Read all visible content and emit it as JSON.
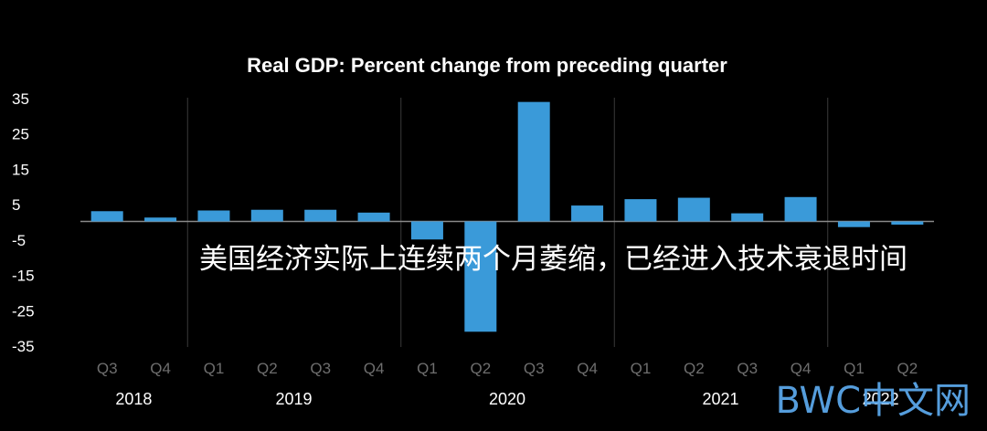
{
  "chart_data": {
    "type": "bar",
    "title": "Real GDP:  Percent change from preceding quarter",
    "categories": [
      "Q3",
      "Q4",
      "Q1",
      "Q2",
      "Q3",
      "Q4",
      "Q1",
      "Q2",
      "Q3",
      "Q4",
      "Q1",
      "Q2",
      "Q3",
      "Q4",
      "Q1",
      "Q2"
    ],
    "years": [
      {
        "label": "2018",
        "start": 0,
        "end": 1
      },
      {
        "label": "2019",
        "start": 2,
        "end": 5
      },
      {
        "label": "2020",
        "start": 6,
        "end": 9
      },
      {
        "label": "2021",
        "start": 10,
        "end": 13
      },
      {
        "label": "2022",
        "start": 14,
        "end": 15
      }
    ],
    "values": [
      2.9,
      1.1,
      3.1,
      3.3,
      3.3,
      2.5,
      -5.1,
      -31.2,
      33.8,
      4.5,
      6.3,
      6.7,
      2.3,
      6.9,
      -1.6,
      -0.9
    ],
    "yticks": [
      35,
      25,
      15,
      5,
      -5,
      -15,
      -25,
      -35
    ],
    "ylim": [
      -35,
      35
    ],
    "bar_color": "#3a9ad9"
  },
  "overlay": {
    "caption": "美国经济实际上连续两个月萎缩，已经进入技术衰退时间"
  },
  "watermark": {
    "text": "BWC中文网"
  }
}
